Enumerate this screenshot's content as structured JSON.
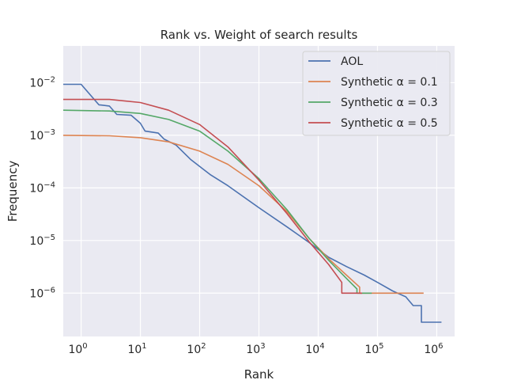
{
  "chart_data": {
    "type": "line",
    "title": "Rank vs. Weight of search results",
    "xlabel": "Rank",
    "ylabel": "Frequency",
    "xscale": "log",
    "yscale": "log",
    "xlim": [
      0.5,
      2000000
    ],
    "ylim": [
      1.5e-07,
      0.05
    ],
    "grid": true,
    "legend_position": "top-right",
    "x_ticks": [
      {
        "value": 1,
        "base": "10",
        "exp": "0"
      },
      {
        "value": 10,
        "base": "10",
        "exp": "1"
      },
      {
        "value": 100,
        "base": "10",
        "exp": "2"
      },
      {
        "value": 1000,
        "base": "10",
        "exp": "3"
      },
      {
        "value": 10000,
        "base": "10",
        "exp": "4"
      },
      {
        "value": 100000,
        "base": "10",
        "exp": "5"
      },
      {
        "value": 1000000,
        "base": "10",
        "exp": "6"
      }
    ],
    "y_ticks": [
      {
        "value": 1e-06,
        "base": "10",
        "exp": "−6"
      },
      {
        "value": 1e-05,
        "base": "10",
        "exp": "−5"
      },
      {
        "value": 0.0001,
        "base": "10",
        "exp": "−4"
      },
      {
        "value": 0.001,
        "base": "10",
        "exp": "−3"
      },
      {
        "value": 0.01,
        "base": "10",
        "exp": "−2"
      }
    ],
    "series": [
      {
        "name": "AOL",
        "color": "#4c72b0",
        "points": [
          [
            0.5,
            0.0093
          ],
          [
            1,
            0.0093
          ],
          [
            2,
            0.0038
          ],
          [
            3,
            0.0036
          ],
          [
            4,
            0.0025
          ],
          [
            7,
            0.0024
          ],
          [
            10,
            0.0017
          ],
          [
            12,
            0.0012
          ],
          [
            20,
            0.0011
          ],
          [
            25,
            0.00085
          ],
          [
            40,
            0.00065
          ],
          [
            70,
            0.00035
          ],
          [
            150,
            0.00018
          ],
          [
            300,
            0.00011
          ],
          [
            1000,
            4.2e-05
          ],
          [
            3000,
            1.8e-05
          ],
          [
            7000,
            9.2e-06
          ],
          [
            15000,
            4.8e-06
          ],
          [
            30000,
            3.2e-06
          ],
          [
            60000,
            2.2e-06
          ],
          [
            100000,
            1.6e-06
          ],
          [
            180000,
            1.1e-06
          ],
          [
            300000,
            8.5e-07
          ],
          [
            400000,
            5.8e-07
          ],
          [
            550000,
            5.8e-07
          ],
          [
            550000,
            2.8e-07
          ],
          [
            1200000,
            2.8e-07
          ]
        ]
      },
      {
        "name": "Synthetic α = 0.1",
        "color": "#dd8452",
        "points": [
          [
            0.5,
            0.001
          ],
          [
            3,
            0.00098
          ],
          [
            10,
            0.0009
          ],
          [
            30,
            0.00075
          ],
          [
            100,
            0.0005
          ],
          [
            300,
            0.00028
          ],
          [
            1000,
            0.00011
          ],
          [
            3000,
            3.5e-05
          ],
          [
            7000,
            1.1e-05
          ],
          [
            15000,
            4.5e-06
          ],
          [
            30000,
            2.2e-06
          ],
          [
            50000,
            1.3e-06
          ],
          [
            50000,
            1e-06
          ],
          [
            600000,
            1e-06
          ]
        ]
      },
      {
        "name": "Synthetic α = 0.3",
        "color": "#55a868",
        "points": [
          [
            0.5,
            0.003
          ],
          [
            3,
            0.0029
          ],
          [
            10,
            0.0026
          ],
          [
            30,
            0.002
          ],
          [
            100,
            0.0012
          ],
          [
            300,
            0.0005
          ],
          [
            1000,
            0.00015
          ],
          [
            3000,
            3.8e-05
          ],
          [
            7000,
            1.1e-05
          ],
          [
            15000,
            4.2e-06
          ],
          [
            30000,
            1.9e-06
          ],
          [
            45000,
            1.2e-06
          ],
          [
            45000,
            1e-06
          ],
          [
            80000,
            1e-06
          ]
        ]
      },
      {
        "name": "Synthetic α = 0.5",
        "color": "#c44e52",
        "points": [
          [
            0.5,
            0.0048
          ],
          [
            3,
            0.0048
          ],
          [
            10,
            0.0042
          ],
          [
            30,
            0.003
          ],
          [
            100,
            0.0016
          ],
          [
            300,
            0.0006
          ],
          [
            1000,
            0.00014
          ],
          [
            3000,
            3.2e-05
          ],
          [
            7000,
            9.5e-06
          ],
          [
            15000,
            3.5e-06
          ],
          [
            25000,
            1.6e-06
          ],
          [
            25000,
            1e-06
          ],
          [
            55000,
            1e-06
          ]
        ]
      }
    ]
  }
}
